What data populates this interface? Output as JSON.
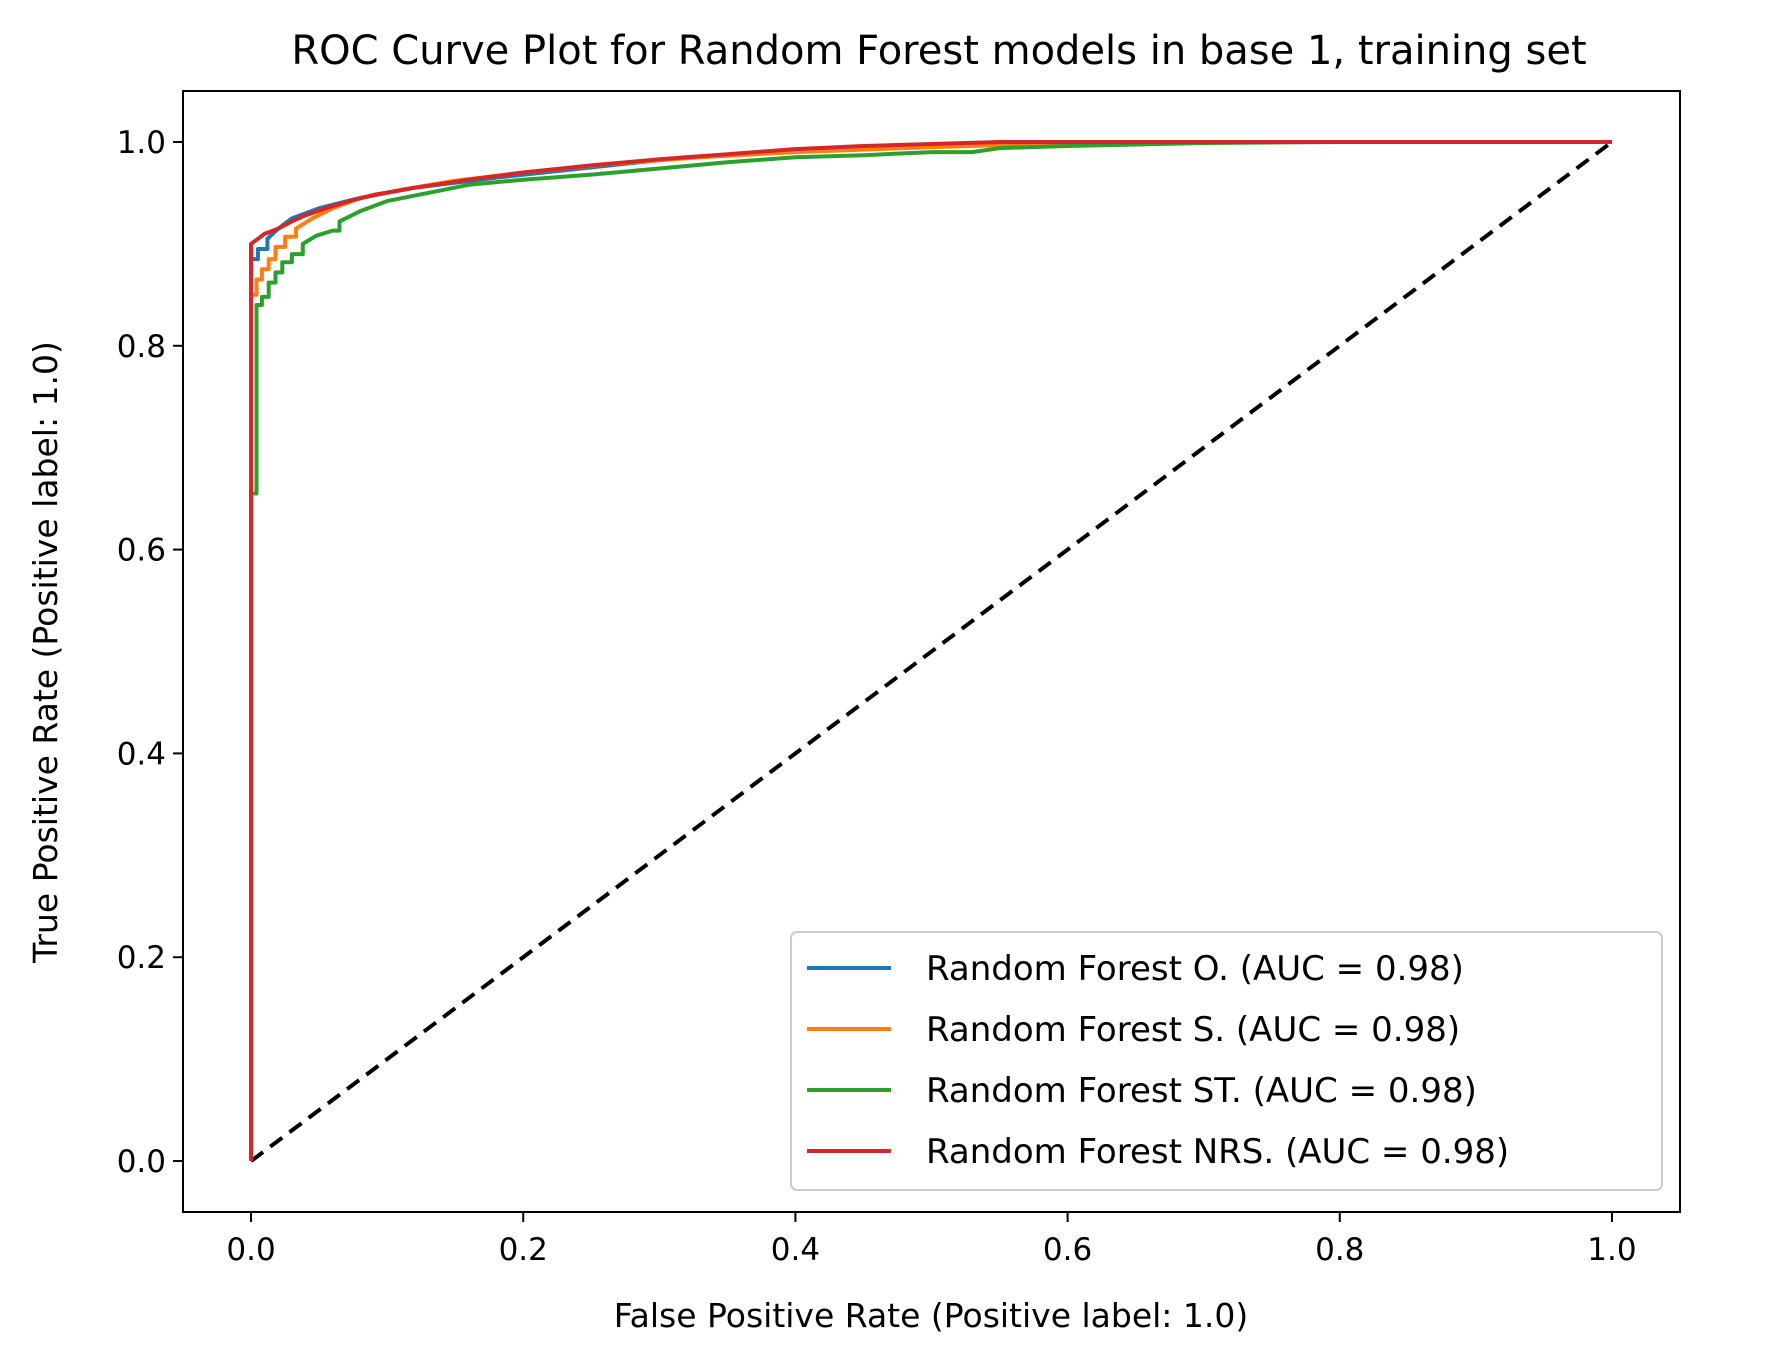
{
  "chart_data": {
    "type": "line",
    "title": "ROC Curve Plot for Random Forest models in base 1, training set",
    "xlabel": "False Positive Rate (Positive label: 1.0)",
    "ylabel": "True Positive Rate (Positive label: 1.0)",
    "xlim": [
      -0.05,
      1.05
    ],
    "ylim": [
      -0.05,
      1.05
    ],
    "xticks": [
      "0.0",
      "0.2",
      "0.4",
      "0.6",
      "0.8",
      "1.0"
    ],
    "yticks": [
      "0.0",
      "0.2",
      "0.4",
      "0.6",
      "0.8",
      "1.0"
    ],
    "grid": false,
    "legend_position": "lower-right",
    "series": [
      {
        "name": "Random Forest O. (AUC = 0.98)",
        "color": "#1f77b4",
        "x": [
          0,
          0,
          0.005,
          0.005,
          0.012,
          0.012,
          0.02,
          0.03,
          0.05,
          0.08,
          0.12,
          0.18,
          0.25,
          0.32,
          0.4,
          0.5,
          0.6,
          0.7,
          0.8,
          0.9,
          1.0
        ],
        "y": [
          0,
          0.885,
          0.885,
          0.895,
          0.895,
          0.905,
          0.915,
          0.925,
          0.935,
          0.945,
          0.955,
          0.965,
          0.975,
          0.985,
          0.992,
          0.997,
          0.999,
          1.0,
          1.0,
          1.0,
          1.0
        ]
      },
      {
        "name": "Random Forest S. (AUC = 0.98)",
        "color": "#ff7f0e",
        "x": [
          0,
          0,
          0.004,
          0.004,
          0.008,
          0.008,
          0.013,
          0.013,
          0.018,
          0.018,
          0.025,
          0.025,
          0.033,
          0.033,
          0.045,
          0.06,
          0.08,
          0.11,
          0.15,
          0.2,
          0.26,
          0.33,
          0.4,
          0.48,
          0.55,
          0.65,
          0.75,
          0.85,
          0.95,
          1.0
        ],
        "y": [
          0,
          0.85,
          0.85,
          0.865,
          0.865,
          0.875,
          0.875,
          0.885,
          0.885,
          0.897,
          0.897,
          0.907,
          0.907,
          0.915,
          0.925,
          0.935,
          0.945,
          0.953,
          0.962,
          0.97,
          0.978,
          0.985,
          0.99,
          0.994,
          0.997,
          0.999,
          1.0,
          1.0,
          1.0,
          1.0
        ]
      },
      {
        "name": "Random Forest ST. (AUC = 0.98)",
        "color": "#2ca02c",
        "x": [
          0,
          0,
          0.004,
          0.004,
          0.008,
          0.008,
          0.013,
          0.013,
          0.018,
          0.018,
          0.023,
          0.023,
          0.03,
          0.03,
          0.038,
          0.038,
          0.048,
          0.06,
          0.065,
          0.065,
          0.08,
          0.1,
          0.13,
          0.16,
          0.2,
          0.25,
          0.3,
          0.35,
          0.4,
          0.45,
          0.5,
          0.53,
          0.55,
          0.6,
          0.7,
          0.8,
          0.9,
          1.0
        ],
        "y": [
          0,
          0.655,
          0.655,
          0.84,
          0.84,
          0.848,
          0.848,
          0.862,
          0.862,
          0.872,
          0.872,
          0.882,
          0.882,
          0.89,
          0.89,
          0.9,
          0.908,
          0.913,
          0.913,
          0.922,
          0.932,
          0.942,
          0.95,
          0.958,
          0.963,
          0.968,
          0.974,
          0.98,
          0.985,
          0.987,
          0.99,
          0.99,
          0.994,
          0.996,
          0.999,
          1.0,
          1.0,
          1.0
        ]
      },
      {
        "name": "Random Forest NRS. (AUC = 0.98)",
        "color": "#d62728",
        "x": [
          0,
          0,
          0.005,
          0.01,
          0.02,
          0.03,
          0.04,
          0.055,
          0.07,
          0.09,
          0.12,
          0.16,
          0.2,
          0.25,
          0.3,
          0.35,
          0.4,
          0.45,
          0.5,
          0.55,
          0.6,
          0.7,
          0.8,
          0.9,
          1.0
        ],
        "y": [
          0,
          0.9,
          0.905,
          0.91,
          0.915,
          0.922,
          0.928,
          0.935,
          0.941,
          0.948,
          0.955,
          0.963,
          0.97,
          0.977,
          0.983,
          0.988,
          0.993,
          0.996,
          0.998,
          1.0,
          1.0,
          1.0,
          1.0,
          1.0,
          1.0
        ]
      }
    ],
    "reference_line": {
      "color": "#000000",
      "style": "dashed",
      "x": [
        0,
        1
      ],
      "y": [
        0,
        1
      ]
    }
  }
}
